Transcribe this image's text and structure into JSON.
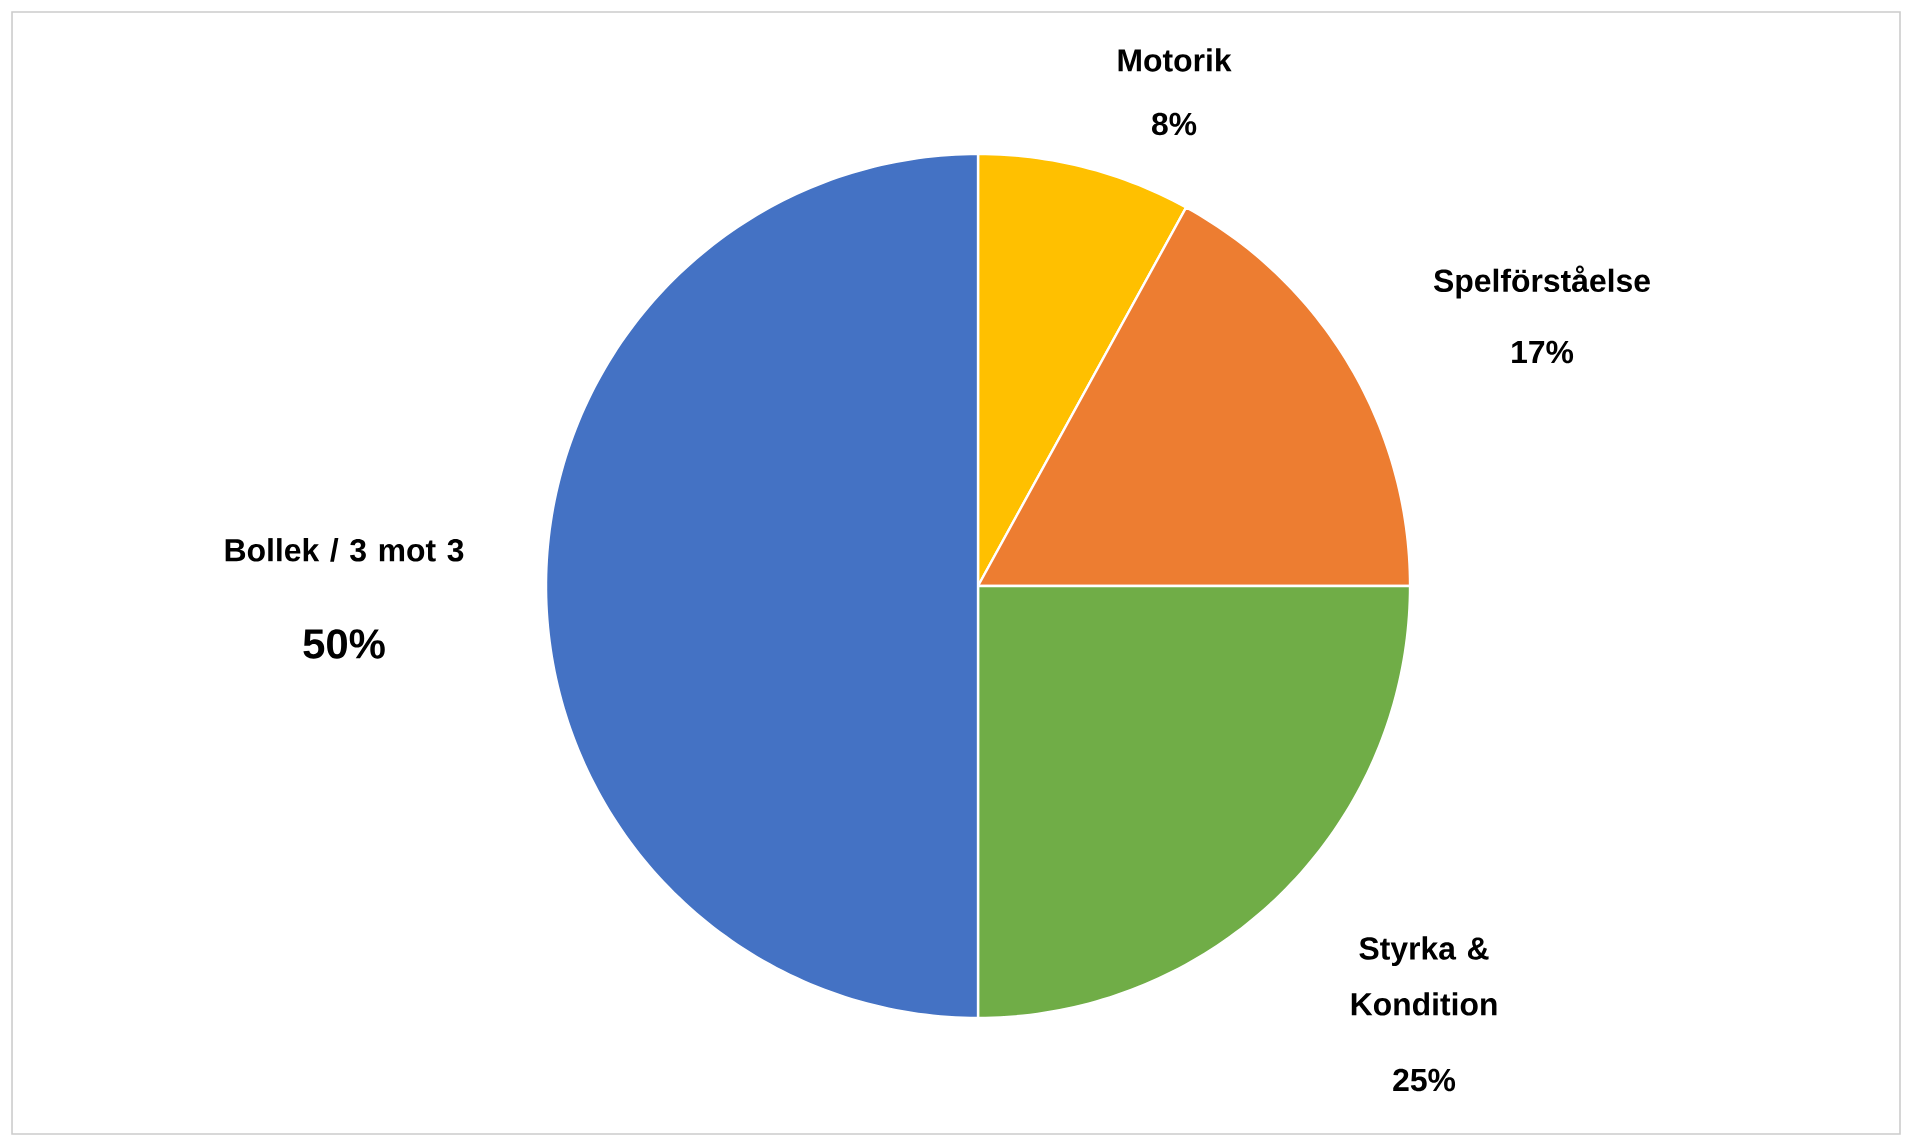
{
  "chart_data": {
    "type": "pie",
    "categories": [
      "Motorik",
      "Spelförståelse",
      "Styrka & Kondition",
      "Bollek / 3 mot 3"
    ],
    "values": [
      8,
      17,
      25,
      50
    ],
    "value_labels": [
      "8%",
      "17%",
      "25%",
      "50%"
    ],
    "colors": [
      "#ffc000",
      "#ed7d31",
      "#70ad47",
      "#4472c4"
    ]
  }
}
